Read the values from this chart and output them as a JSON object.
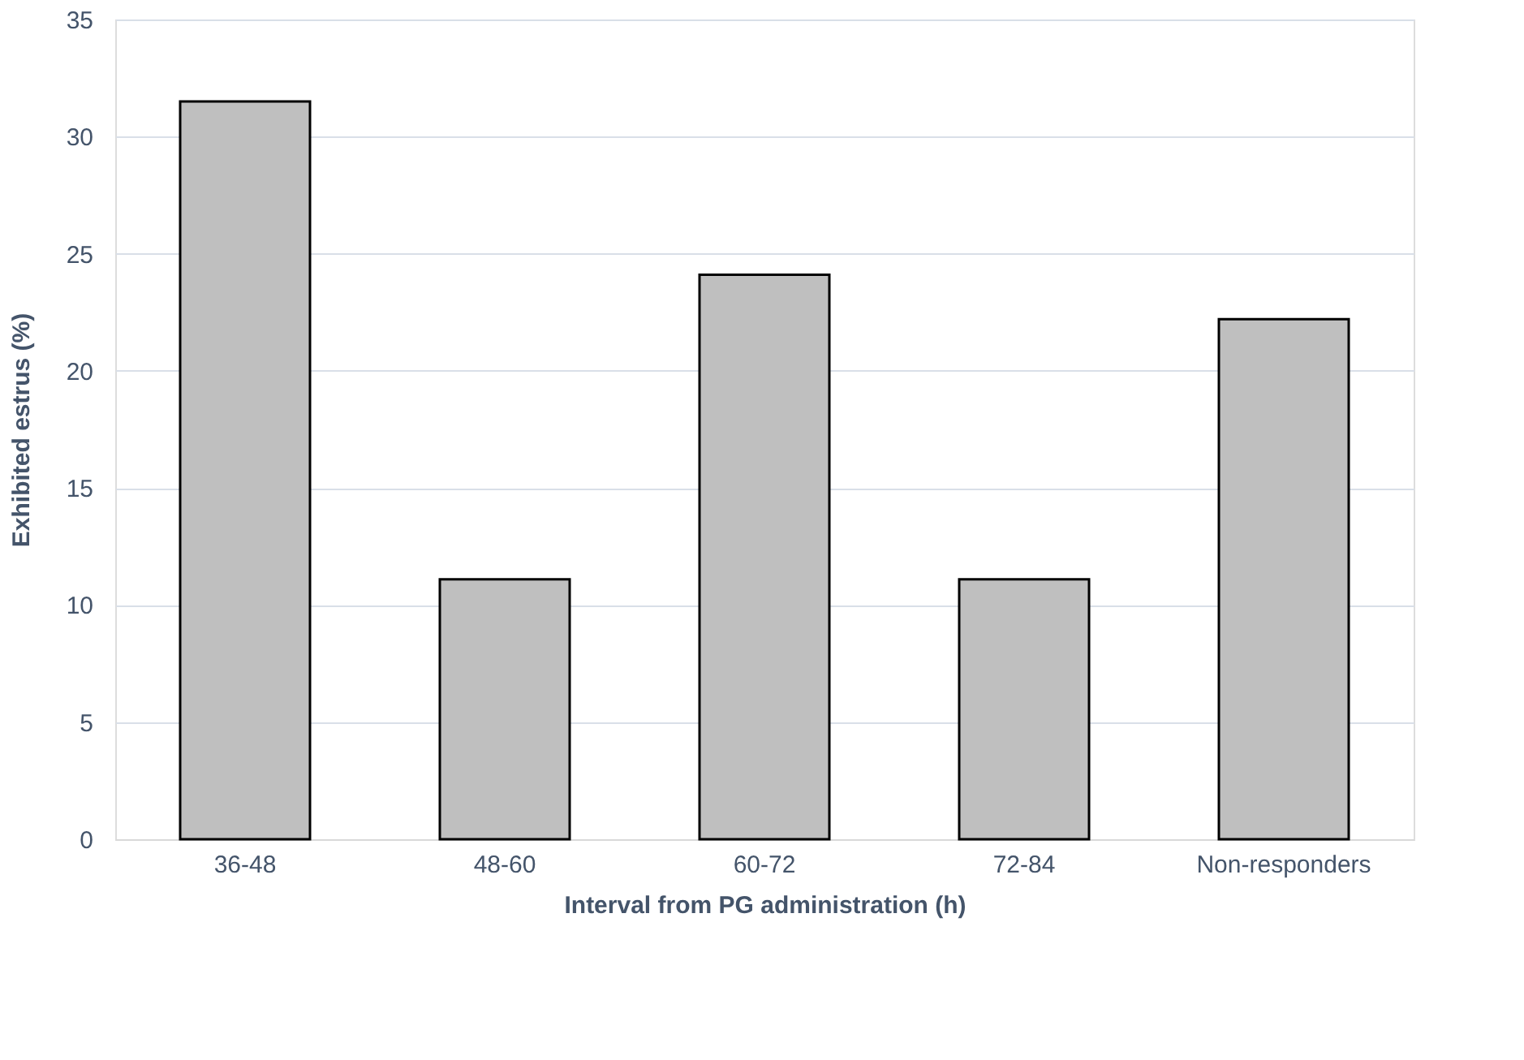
{
  "chart_data": {
    "type": "bar",
    "xlabel": "Interval from PG administration (h)",
    "ylabel": "Exhibited estrus (%)",
    "categories": [
      "36-48",
      "48-60",
      "60-72",
      "72-84",
      "Non-responders"
    ],
    "values": [
      31.5,
      11.1,
      24.1,
      11.1,
      22.2
    ],
    "color": "#bfbfbf",
    "ylim": [
      0,
      35
    ],
    "yticks": [
      0,
      5,
      10,
      15,
      20,
      25,
      30,
      35
    ],
    "grid": "y"
  }
}
